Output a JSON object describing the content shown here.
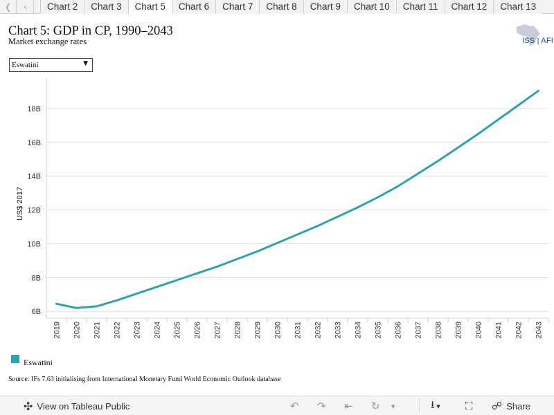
{
  "tabs": {
    "nav_first": "❬",
    "nav_prev": "‹",
    "items": [
      "Chart 2",
      "Chart 3",
      "Chart 5",
      "Chart 6",
      "Chart 7",
      "Chart 8",
      "Chart 9",
      "Chart 10",
      "Chart 11",
      "Chart 12",
      "Chart 13"
    ],
    "active": "Chart 5"
  },
  "header": {
    "title": "Chart 5: GDP in CP, 1990–2043",
    "subtitle": "Market exchange rates",
    "logo_text": "ISS | AFI"
  },
  "filter": {
    "selected": "Eswatini",
    "caret": "▼"
  },
  "chart_data": {
    "type": "line",
    "title": "Chart 5: GDP in CP, 1990–2043",
    "subtitle": "Market exchange rates",
    "xlabel": "",
    "ylabel": "US$ 2017",
    "ylim": [
      5.6,
      19.8
    ],
    "yticks": [
      6,
      8,
      10,
      12,
      14,
      16,
      18
    ],
    "ytick_labels": [
      "6B",
      "8B",
      "10B",
      "12B",
      "14B",
      "16B",
      "18B"
    ],
    "grid": true,
    "legend_position": "bottom-left",
    "x": [
      "2019",
      "2020",
      "2021",
      "2022",
      "2023",
      "2024",
      "2025",
      "2026",
      "2027",
      "2028",
      "2029",
      "2030",
      "2031",
      "2032",
      "2033",
      "2034",
      "2035",
      "2036",
      "2037",
      "2038",
      "2039",
      "2040",
      "2041",
      "2042",
      "2043"
    ],
    "series": [
      {
        "name": "Eswatini",
        "color": "#2ea3ae",
        "values": [
          6.45,
          6.2,
          6.3,
          6.65,
          7.05,
          7.45,
          7.85,
          8.25,
          8.65,
          9.1,
          9.55,
          10.05,
          10.55,
          11.05,
          11.6,
          12.15,
          12.75,
          13.4,
          14.15,
          14.9,
          15.7,
          16.5,
          17.35,
          18.2,
          19.05
        ]
      }
    ]
  },
  "legend": {
    "items": [
      {
        "label": "Eswatini",
        "color": "#2ea3ae"
      }
    ]
  },
  "source": "Source: IFs 7.63 initialising from International Monetary Fund World Economic Outlook database",
  "toolbar": {
    "view_label": "View on Tableau Public",
    "share_label": "Share",
    "icons": {
      "tableau": "✣",
      "undo": "↶",
      "redo": "↷",
      "revert": "⇤",
      "refresh": "↻",
      "dropdown": "▾",
      "download": "⭳",
      "fullscreen": "⛶",
      "share": "☍"
    }
  }
}
